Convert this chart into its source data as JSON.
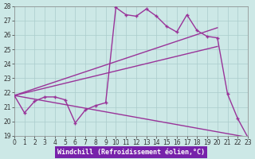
{
  "xlabel": "Windchill (Refroidissement éolien,°C)",
  "background_color": "#cce8e6",
  "grid_color": "#aacccc",
  "line_color": "#993399",
  "xlim": [
    0,
    23
  ],
  "ylim": [
    19,
    28
  ],
  "xticks": [
    0,
    1,
    2,
    3,
    4,
    5,
    6,
    7,
    8,
    9,
    10,
    11,
    12,
    13,
    14,
    15,
    16,
    17,
    18,
    19,
    20,
    21,
    22,
    23
  ],
  "yticks": [
    19,
    20,
    21,
    22,
    23,
    24,
    25,
    26,
    27,
    28
  ],
  "series1_x": [
    0,
    1,
    2,
    3,
    4,
    5,
    6,
    7,
    8,
    9,
    10,
    11,
    12,
    13,
    14,
    15,
    16,
    17,
    18,
    19,
    20,
    21,
    22,
    23
  ],
  "series1_y": [
    21.8,
    20.6,
    21.4,
    21.7,
    21.7,
    21.5,
    19.9,
    20.8,
    21.1,
    21.3,
    27.9,
    27.4,
    27.3,
    27.8,
    27.3,
    26.6,
    26.2,
    27.4,
    26.3,
    25.9,
    25.8,
    21.9,
    20.2,
    18.9
  ],
  "series2_x": [
    0,
    20
  ],
  "series2_y": [
    21.8,
    26.5
  ],
  "series3_x": [
    0,
    20
  ],
  "series3_y": [
    21.8,
    25.2
  ],
  "series4_x": [
    0,
    23
  ],
  "series4_y": [
    21.8,
    18.9
  ],
  "xlabel_bg": "#7722aa",
  "xlabel_fg": "#ffffff",
  "tick_fontsize": 5.5,
  "xlabel_fontsize": 6
}
